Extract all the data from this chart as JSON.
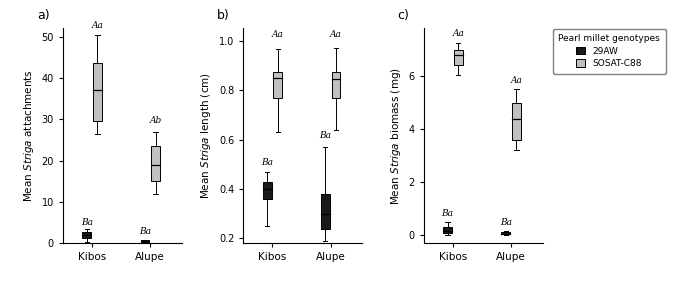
{
  "panel_labels": [
    "a)",
    "b)",
    "c)"
  ],
  "ecotypes": [
    "Kibos",
    "Alupe"
  ],
  "genotypes": [
    "29AW",
    "SOSAT-C88"
  ],
  "genotype_colors": [
    "#1a1a1a",
    "#c0c0c0"
  ],
  "legend_title": "Pearl millet genotypes",
  "panel_a": {
    "ylabel": "Mean Striga attachments",
    "ylim": [
      0,
      52
    ],
    "yticks": [
      0,
      10,
      20,
      30,
      40,
      50
    ],
    "boxes": {
      "Kibos": {
        "29AW": {
          "q1": 1.2,
          "median": 2.0,
          "q3": 2.8,
          "whislo": 0.3,
          "whishi": 3.5
        },
        "SOSAT-C88": {
          "q1": 29.5,
          "median": 37.0,
          "q3": 43.5,
          "whislo": 26.5,
          "whishi": 50.5
        }
      },
      "Alupe": {
        "29AW": {
          "q1": 0.3,
          "median": 0.5,
          "q3": 0.7,
          "whislo": 0.1,
          "whishi": 0.9
        },
        "SOSAT-C88": {
          "q1": 15.0,
          "median": 19.0,
          "q3": 23.5,
          "whislo": 12.0,
          "whishi": 27.0
        }
      }
    },
    "sig_labels": {
      "Kibos": {
        "29AW": "Ba",
        "SOSAT-C88": "Aa"
      },
      "Alupe": {
        "29AW": "Ba",
        "SOSAT-C88": "Ab"
      }
    },
    "sig_y": {
      "Kibos": {
        "29AW": 4.0,
        "SOSAT-C88": 51.5
      },
      "Alupe": {
        "29AW": 1.8,
        "SOSAT-C88": 28.5
      }
    }
  },
  "panel_b": {
    "ylabel": "Mean Striga length (cm)",
    "ylim": [
      0.18,
      1.05
    ],
    "yticks": [
      0.2,
      0.4,
      0.6,
      0.8,
      1.0
    ],
    "boxes": {
      "Kibos": {
        "29AW": {
          "q1": 0.36,
          "median": 0.4,
          "q3": 0.43,
          "whislo": 0.25,
          "whishi": 0.47
        },
        "SOSAT-C88": {
          "q1": 0.77,
          "median": 0.85,
          "q3": 0.875,
          "whislo": 0.63,
          "whishi": 0.965
        }
      },
      "Alupe": {
        "29AW": {
          "q1": 0.24,
          "median": 0.3,
          "q3": 0.38,
          "whislo": 0.19,
          "whishi": 0.57
        },
        "SOSAT-C88": {
          "q1": 0.77,
          "median": 0.845,
          "q3": 0.875,
          "whislo": 0.64,
          "whishi": 0.97
        }
      }
    },
    "sig_labels": {
      "Kibos": {
        "29AW": "Ba",
        "SOSAT-C88": "Aa"
      },
      "Alupe": {
        "29AW": "Ba",
        "SOSAT-C88": "Aa"
      }
    },
    "sig_y": {
      "Kibos": {
        "29AW": 0.49,
        "SOSAT-C88": 1.005
      },
      "Alupe": {
        "29AW": 0.6,
        "SOSAT-C88": 1.005
      }
    }
  },
  "panel_c": {
    "ylabel": "Mean Striga biomass (mg)",
    "ylim": [
      -0.3,
      7.8
    ],
    "yticks": [
      0,
      2,
      4,
      6
    ],
    "boxes": {
      "Kibos": {
        "29AW": {
          "q1": 0.08,
          "median": 0.18,
          "q3": 0.3,
          "whislo": 0.0,
          "whishi": 0.5
        },
        "SOSAT-C88": {
          "q1": 6.4,
          "median": 6.8,
          "q3": 7.0,
          "whislo": 6.05,
          "whishi": 7.25
        }
      },
      "Alupe": {
        "29AW": {
          "q1": 0.04,
          "median": 0.07,
          "q3": 0.12,
          "whislo": 0.0,
          "whishi": 0.18
        },
        "SOSAT-C88": {
          "q1": 3.6,
          "median": 4.4,
          "q3": 5.0,
          "whislo": 3.2,
          "whishi": 5.5
        }
      }
    },
    "sig_labels": {
      "Kibos": {
        "29AW": "Ba",
        "SOSAT-C88": "Aa"
      },
      "Alupe": {
        "29AW": "Ba",
        "SOSAT-C88": "Aa"
      }
    },
    "sig_y": {
      "Kibos": {
        "29AW": 0.65,
        "SOSAT-C88": 7.45
      },
      "Alupe": {
        "29AW": 0.3,
        "SOSAT-C88": 5.65
      }
    }
  }
}
